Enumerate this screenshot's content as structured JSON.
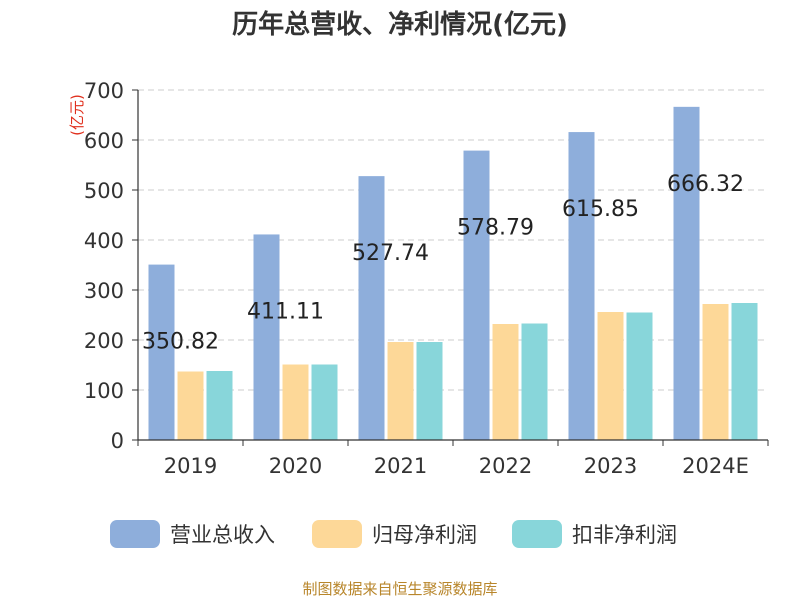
{
  "chart_data": {
    "type": "bar",
    "title": "历年总营收、净利情况(亿元)",
    "ylabel": "(亿元)",
    "xlabel": "",
    "ylim": [
      0,
      700
    ],
    "yticks": [
      0,
      100,
      200,
      300,
      400,
      500,
      600,
      700
    ],
    "grid": true,
    "legend_position": "bottom",
    "categories": [
      "2019",
      "2020",
      "2021",
      "2022",
      "2023",
      "2024E"
    ],
    "series": [
      {
        "name": "营业总收入",
        "color": "#8eaedb",
        "values": [
          350.82,
          411.11,
          527.74,
          578.79,
          615.85,
          666.32
        ]
      },
      {
        "name": "归母净利润",
        "color": "#fdd898",
        "values": [
          137,
          151,
          196,
          232,
          256,
          272
        ]
      },
      {
        "name": "扣非净利润",
        "color": "#88d6da",
        "values": [
          138,
          151,
          196,
          233,
          255,
          274
        ]
      }
    ],
    "data_labels": [
      "350.82",
      "411.11",
      "527.74",
      "578.79",
      "615.85",
      "666.32"
    ],
    "source": "制图数据来自恒生聚源数据库"
  }
}
